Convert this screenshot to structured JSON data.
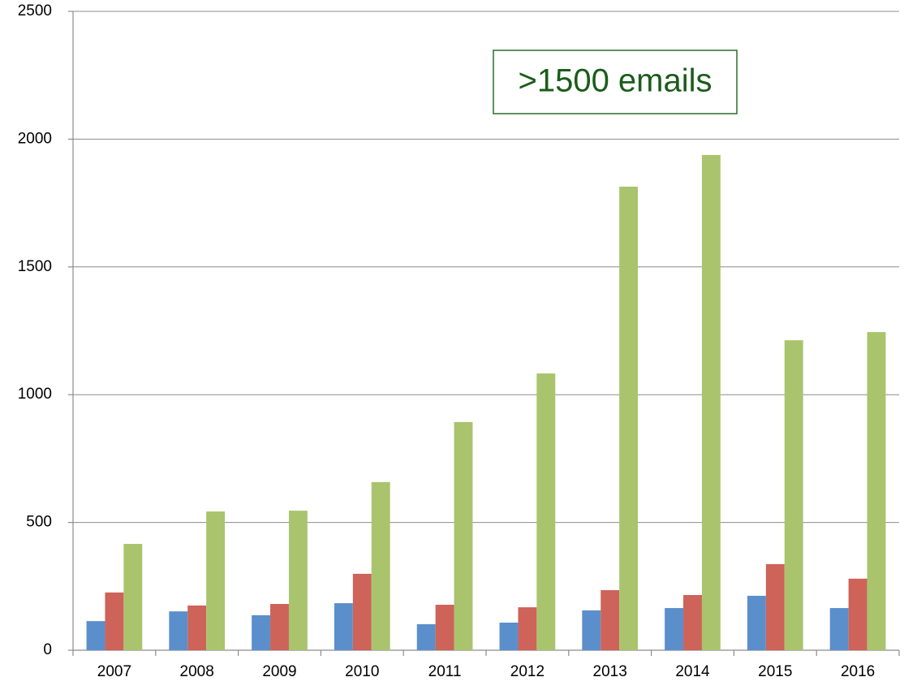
{
  "chart_data": {
    "type": "bar",
    "annotation": ">1500 emails",
    "categories": [
      "2007",
      "2008",
      "2009",
      "2010",
      "2011",
      "2012",
      "2013",
      "2014",
      "2015",
      "2016"
    ],
    "series": [
      {
        "color": "#5b8fcb",
        "values": [
          114,
          152,
          137,
          184,
          102,
          108,
          156,
          165,
          213,
          165
        ]
      },
      {
        "color": "#cd6359",
        "values": [
          226,
          175,
          181,
          299,
          178,
          168,
          235,
          216,
          337,
          280
        ]
      },
      {
        "color": "#a9c46d",
        "values": [
          416,
          543,
          546,
          658,
          893,
          1083,
          1814,
          1938,
          1213,
          1245
        ]
      }
    ],
    "ylim": [
      0,
      2500
    ],
    "yticks": [
      0,
      500,
      1000,
      1500,
      2000,
      2500
    ],
    "grid": true
  }
}
